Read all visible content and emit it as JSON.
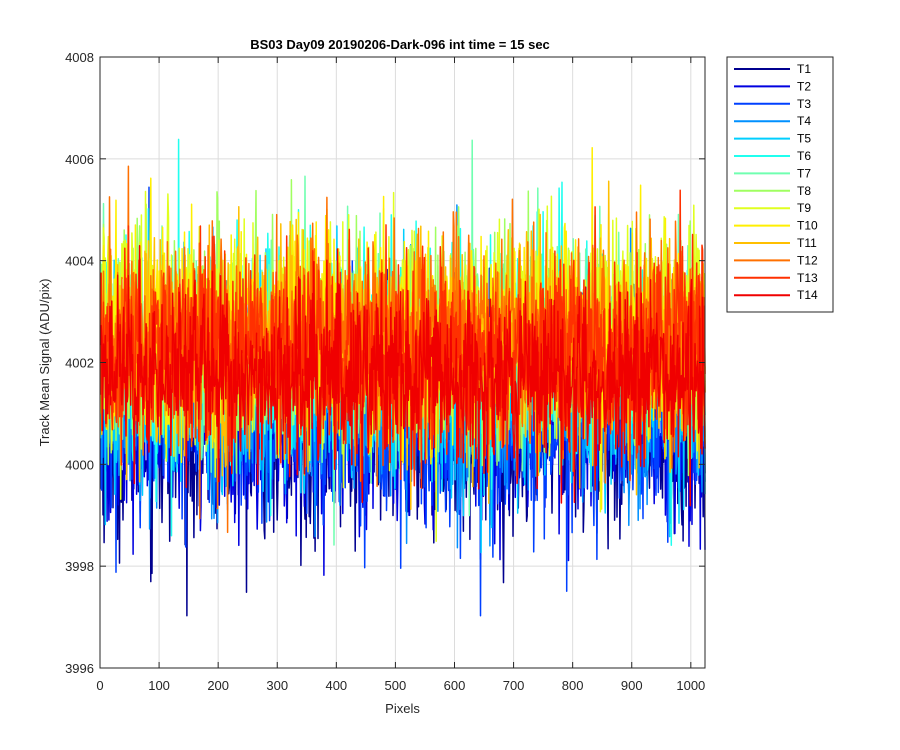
{
  "chart_data": {
    "type": "line",
    "title": "BS03 Day09 20190206-Dark-096 int time = 15 sec",
    "xlabel": "Pixels",
    "ylabel": "Track Mean Signal (ADU/pix)",
    "xlim": [
      0,
      1024
    ],
    "ylim": [
      3996,
      4008
    ],
    "xticks": [
      0,
      100,
      200,
      300,
      400,
      500,
      600,
      700,
      800,
      900,
      1000
    ],
    "yticks": [
      3996,
      3998,
      4000,
      4002,
      4004,
      4006,
      4008
    ],
    "grid": true,
    "legend_position": "outside-right-top",
    "series_count_per_curve": 1024,
    "series": [
      {
        "name": "T1",
        "color": "#00008f",
        "mean": 4000.7,
        "spread": 1.05
      },
      {
        "name": "T2",
        "color": "#0000e0",
        "mean": 4000.9,
        "spread": 1.0
      },
      {
        "name": "T3",
        "color": "#0040ff",
        "mean": 4001.0,
        "spread": 1.0
      },
      {
        "name": "T4",
        "color": "#0090ff",
        "mean": 4001.3,
        "spread": 1.0
      },
      {
        "name": "T5",
        "color": "#00cfff",
        "mean": 4001.6,
        "spread": 1.0
      },
      {
        "name": "T6",
        "color": "#20ffef",
        "mean": 4002.3,
        "spread": 1.05
      },
      {
        "name": "T7",
        "color": "#70ffb0",
        "mean": 4002.3,
        "spread": 1.0
      },
      {
        "name": "T8",
        "color": "#a0ff60",
        "mean": 4002.4,
        "spread": 1.0
      },
      {
        "name": "T9",
        "color": "#e0ff20",
        "mean": 4002.6,
        "spread": 1.0
      },
      {
        "name": "T10",
        "color": "#ffef00",
        "mean": 4002.5,
        "spread": 1.0
      },
      {
        "name": "T11",
        "color": "#ffbf00",
        "mean": 4002.2,
        "spread": 1.0
      },
      {
        "name": "T12",
        "color": "#ff7000",
        "mean": 4002.5,
        "spread": 1.0
      },
      {
        "name": "T13",
        "color": "#ff3000",
        "mean": 4002.2,
        "spread": 0.95
      },
      {
        "name": "T14",
        "color": "#f00000",
        "mean": 4001.7,
        "spread": 0.85
      }
    ]
  }
}
